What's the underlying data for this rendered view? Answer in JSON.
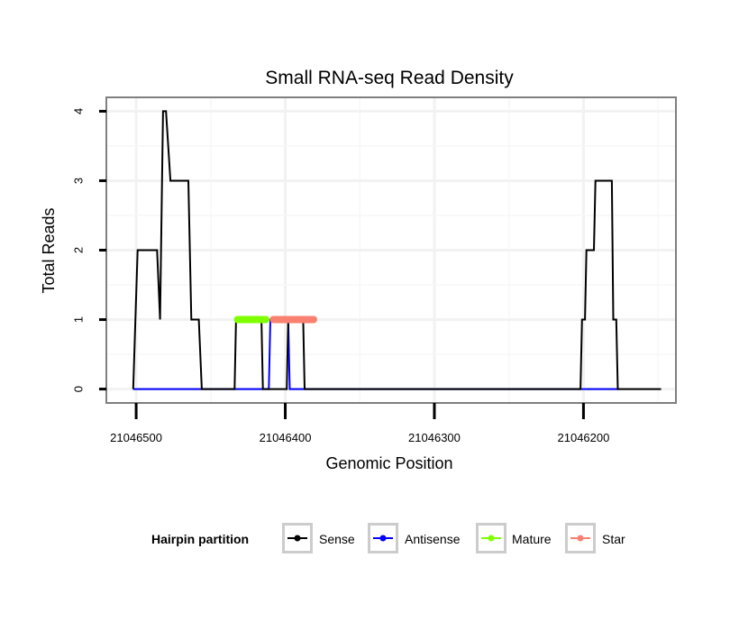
{
  "chart_data": {
    "type": "line",
    "title": "Small RNA-seq Read Density",
    "xlabel": "Genomic Position",
    "ylabel": "Total Reads",
    "x_reversed": true,
    "xlim": [
      21046520,
      21046138
    ],
    "ylim": [
      -0.2,
      4.2
    ],
    "xticks": [
      21046500,
      21046400,
      21046300,
      21046200
    ],
    "xtick_labels": [
      "21046500",
      "21046400",
      "21046300",
      "21046200"
    ],
    "yticks": [
      0,
      1,
      2,
      3,
      4
    ],
    "ytick_labels": [
      "0",
      "1",
      "2",
      "3",
      "4"
    ],
    "grid": true,
    "legend": {
      "title": "Hairpin partition",
      "position": "bottom"
    },
    "series": [
      {
        "name": "Sense",
        "color": "#000000",
        "x": [
          21046502,
          21046499,
          21046486,
          21046484,
          21046482,
          21046480,
          21046477,
          21046465,
          21046463,
          21046458,
          21046456,
          21046434,
          21046433,
          21046416,
          21046415,
          21046399,
          21046398,
          21046388,
          21046387,
          21046202,
          21046201,
          21046199,
          21046198,
          21046193,
          21046192,
          21046181,
          21046180,
          21046178,
          21046177,
          21046148
        ],
        "y": [
          0,
          2,
          2,
          1,
          4,
          4,
          3,
          3,
          1,
          1,
          0,
          0,
          1,
          1,
          0,
          0,
          1,
          1,
          0,
          0,
          1,
          1,
          2,
          2,
          3,
          3,
          1,
          1,
          0,
          0
        ]
      },
      {
        "name": "Antisense",
        "color": "#0000ff",
        "x": [
          21046502,
          21046415,
          21046411,
          21046410,
          21046398,
          21046397,
          21046176,
          21046200
        ],
        "y": [
          0,
          0,
          0,
          1,
          1,
          0,
          0,
          0
        ]
      },
      {
        "name": "Mature",
        "color": "#7fff00",
        "x": [
          21046432,
          21046413
        ],
        "y": [
          1,
          1
        ]
      },
      {
        "name": "Star",
        "color": "#fa8072",
        "x": [
          21046408,
          21046381
        ],
        "y": [
          1,
          1
        ]
      }
    ]
  }
}
